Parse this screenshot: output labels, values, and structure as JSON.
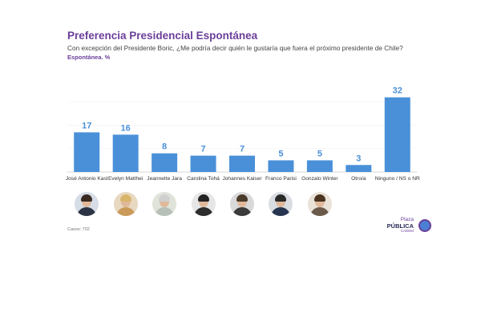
{
  "chart_data": {
    "type": "bar",
    "title": "Preferencia Presidencial Espontánea",
    "subtitle": "Con excepción del Presidente Boric, ¿Me podría decir quién le gustaría que fuera el próximo presidente de Chile?",
    "note": "Espontánea. %",
    "categories": [
      "José Antonio Kast",
      "Evelyn Matthei",
      "Jeannette Jara",
      "Carolina Tohá",
      "Johannes Kaiser",
      "Franco Parisi",
      "Gonzalo Winter",
      "Otro/a",
      "Ninguno / NS o NR"
    ],
    "values": [
      17,
      16,
      8,
      7,
      7,
      5,
      5,
      3,
      32
    ],
    "data_labels": [
      "17",
      "16",
      "8",
      "7",
      "7",
      "5",
      "5",
      "3",
      "32"
    ],
    "ylim": [
      0,
      36
    ],
    "grid": true,
    "bar_color": "#4a90d9",
    "label_color": "#4a90d9"
  },
  "footer": {
    "sample": "Casos: 702"
  },
  "logo": {
    "line1": "Plaza",
    "line2": "PÚBLICA",
    "line3": "CADEM"
  },
  "avatars": [
    {
      "name": "kast-avatar",
      "bg": "#d7dde6",
      "clothes": "#2b3445",
      "hair": "#3a2a22"
    },
    {
      "name": "matthei-avatar",
      "bg": "#e8d8c0",
      "clothes": "#c99a5a",
      "hair": "#d9b56c"
    },
    {
      "name": "jara-avatar",
      "bg": "#dfe3da",
      "clothes": "#b7c0b8",
      "hair": "#cfcfcf"
    },
    {
      "name": "toha-avatar",
      "bg": "#e6e6e6",
      "clothes": "#2d2d2d",
      "hair": "#222222"
    },
    {
      "name": "kaiser-avatar",
      "bg": "#d9d9d9",
      "clothes": "#3b3b3b",
      "hair": "#4a3a2a"
    },
    {
      "name": "parisi-avatar",
      "bg": "#dadde2",
      "clothes": "#263550",
      "hair": "#2a2a2a"
    },
    {
      "name": "winter-avatar",
      "bg": "#e8e2d8",
      "clothes": "#6b5a4a",
      "hair": "#4a3320"
    }
  ]
}
